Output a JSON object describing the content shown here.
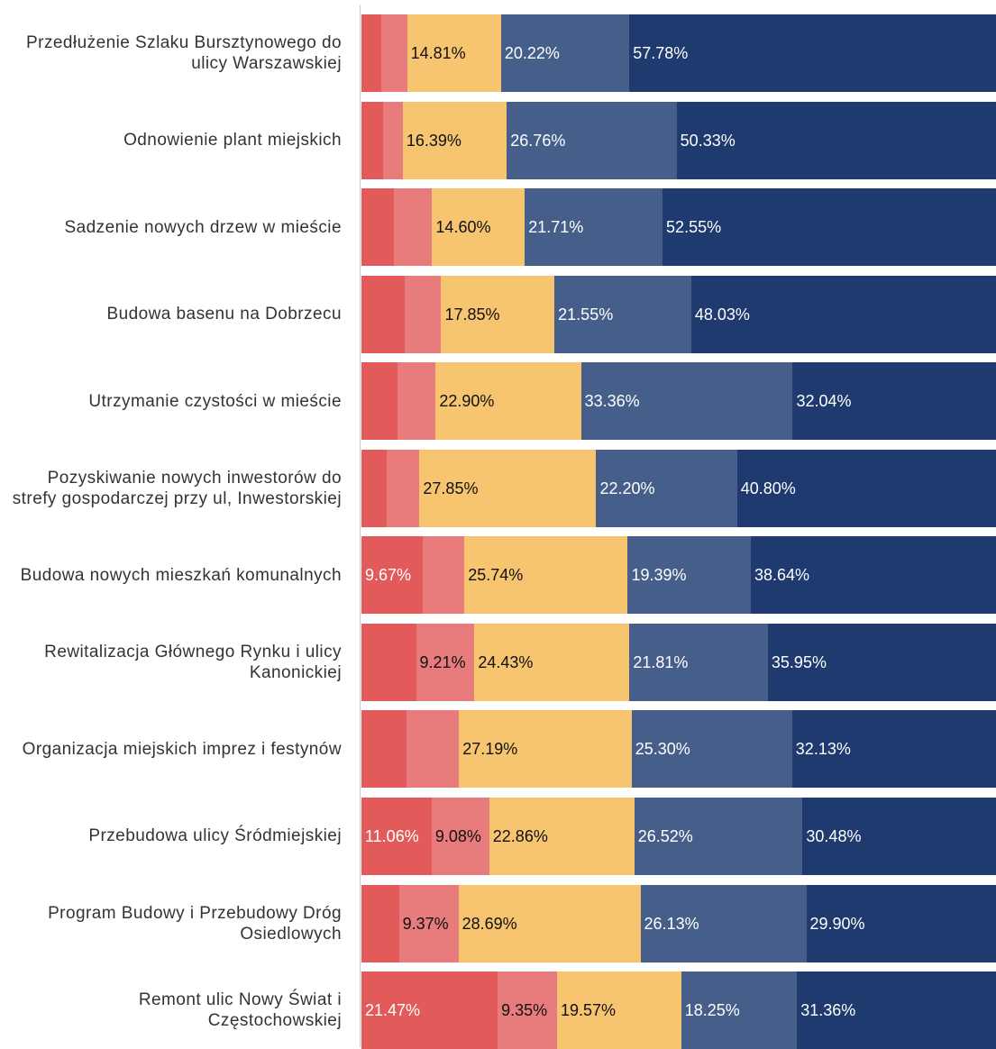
{
  "chart_data": {
    "type": "stacked-bar-horizontal",
    "categories": [
      "Przedłużenie Szlaku Bursztynowego do ulicy Warszawskiej",
      "Odnowienie plant miejskich",
      "Sadzenie nowych drzew w mieście",
      "Budowa basenu na Dobrzecu",
      "Utrzymanie czystości w mieście",
      "Pozyskiwanie nowych inwestorów do strefy gospodarczej przy ul, Inwestorskiej",
      "Budowa nowych mieszkań komunalnych",
      "Rewitalizacja Głównego Rynku i ulicy Kanonickiej",
      "Organizacja miejskich imprez i festynów",
      "Przebudowa ulicy Śródmiejskiej",
      "Program Budowy i Przebudowy Dróg Osiedlowych",
      "Remont ulic Nowy Świat i Częstochowskiej"
    ],
    "xlim": [
      0,
      100
    ],
    "series": [
      {
        "color": "#e35a5a",
        "values": [
          3.1,
          3.4,
          5.1,
          6.8,
          5.7,
          4.0,
          9.67,
          8.6,
          7.1,
          11.06,
          5.91,
          21.47
        ],
        "value_labels": [
          null,
          null,
          null,
          null,
          null,
          null,
          "9.67%",
          null,
          null,
          "11.06%",
          null,
          "21.47%"
        ]
      },
      {
        "color": "#e87b7b",
        "values": [
          4.09,
          3.12,
          6.04,
          5.77,
          6.0,
          5.15,
          6.56,
          9.21,
          8.28,
          9.08,
          9.37,
          9.35
        ],
        "value_labels": [
          null,
          null,
          null,
          null,
          null,
          null,
          null,
          "9.21%",
          null,
          "9.08%",
          "9.37%",
          "9.35%"
        ]
      },
      {
        "color": "#f7c46f",
        "values": [
          14.81,
          16.39,
          14.6,
          17.85,
          22.9,
          27.85,
          25.74,
          24.43,
          27.19,
          22.86,
          28.69,
          19.57
        ],
        "value_labels": [
          "14.81%",
          "16.39%",
          "14.60%",
          "17.85%",
          "22.90%",
          "27.85%",
          "25.74%",
          "24.43%",
          "27.19%",
          "22.86%",
          "28.69%",
          "19.57%"
        ]
      },
      {
        "color": "#465f8a",
        "values": [
          20.22,
          26.76,
          21.71,
          21.55,
          33.36,
          22.2,
          19.39,
          21.81,
          25.3,
          26.52,
          26.13,
          18.25
        ],
        "value_labels": [
          "20.22%",
          "26.76%",
          "21.71%",
          "21.55%",
          "33.36%",
          "22.20%",
          "19.39%",
          "21.81%",
          "25.30%",
          "26.52%",
          "26.13%",
          "18.25%"
        ]
      },
      {
        "color": "#1e3a6e",
        "values": [
          57.78,
          50.33,
          52.55,
          48.03,
          32.04,
          40.8,
          38.64,
          35.95,
          32.13,
          30.48,
          29.9,
          31.36
        ],
        "value_labels": [
          "57.78%",
          "50.33%",
          "52.55%",
          "48.03%",
          "32.04%",
          "40.80%",
          "38.64%",
          "35.95%",
          "32.13%",
          "30.48%",
          "29.90%",
          "31.36%"
        ]
      }
    ]
  }
}
